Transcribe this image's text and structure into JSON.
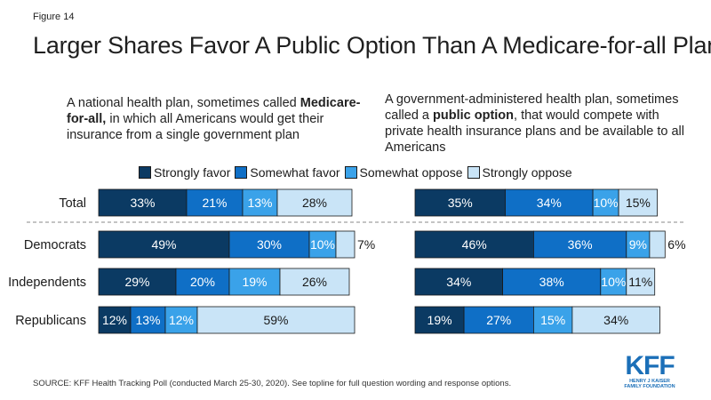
{
  "figure_label": "Figure 14",
  "chart_data": {
    "type": "bar",
    "orientation": "horizontal",
    "stacked": true,
    "title": "Larger Shares Favor A Public Option Than A Medicare-for-all Plan",
    "categories": [
      "Total",
      "Democrats",
      "Independents",
      "Republicans"
    ],
    "legend": [
      {
        "name": "Strongly favor",
        "color": "#0b3a63"
      },
      {
        "name": "Somewhat favor",
        "color": "#0f6fc6"
      },
      {
        "name": "Somewhat oppose",
        "color": "#3aa2e9"
      },
      {
        "name": "Strongly oppose",
        "color": "#c9e4f7"
      }
    ],
    "panels": [
      {
        "id": "medicare",
        "subtitle_pre": "A national health plan, sometimes called ",
        "subtitle_bold": "Medicare-for-all,",
        "subtitle_post": " in which all Americans would get their insurance from a single government plan",
        "rows": [
          {
            "category": "Total",
            "values": [
              33,
              21,
              13,
              28
            ],
            "labels": [
              "33%",
              "21%",
              "13%",
              "28%"
            ]
          },
          {
            "category": "Democrats",
            "values": [
              49,
              30,
              10,
              7
            ],
            "labels": [
              "49%",
              "30%",
              "10%",
              "7%"
            ]
          },
          {
            "category": "Independents",
            "values": [
              29,
              20,
              19,
              26
            ],
            "labels": [
              "29%",
              "20%",
              "19%",
              "26%"
            ]
          },
          {
            "category": "Republicans",
            "values": [
              12,
              13,
              12,
              59
            ],
            "labels": [
              "12%",
              "13%",
              "12%",
              "59%"
            ]
          }
        ]
      },
      {
        "id": "public_option",
        "subtitle_pre": "A government-administered health plan, sometimes called a ",
        "subtitle_bold": "public option",
        "subtitle_post": ", that would compete with private health insurance plans and be available to all Americans",
        "rows": [
          {
            "category": "Total",
            "values": [
              35,
              34,
              10,
              15
            ],
            "labels": [
              "35%",
              "34%",
              "10%",
              "15%"
            ]
          },
          {
            "category": "Democrats",
            "values": [
              46,
              36,
              9,
              6
            ],
            "labels": [
              "46%",
              "36%",
              "9%",
              "6%"
            ]
          },
          {
            "category": "Independents",
            "values": [
              34,
              38,
              10,
              11
            ],
            "labels": [
              "34%",
              "38%",
              "10%",
              "11%"
            ]
          },
          {
            "category": "Republicans",
            "values": [
              19,
              27,
              15,
              34
            ],
            "labels": [
              "19%",
              "27%",
              "15%",
              "34%"
            ]
          }
        ]
      }
    ]
  },
  "source": "SOURCE: KFF Health Tracking Poll (conducted March 25-30, 2020). See topline for full question wording and response options.",
  "logo": {
    "main": "KFF",
    "line1": "HENRY J KAISER",
    "line2": "FAMILY FOUNDATION"
  }
}
